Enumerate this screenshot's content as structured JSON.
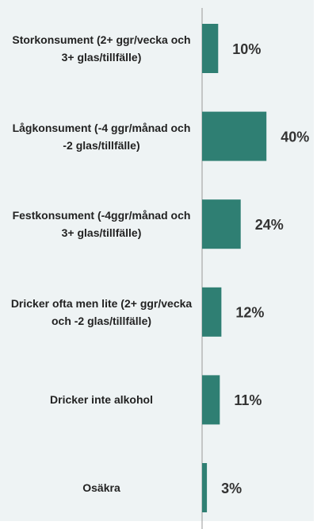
{
  "chart_data": {
    "type": "bar",
    "orientation": "horizontal",
    "categories": [
      "Storkonsument (2+ ggr/vecka och 3+ glas/tillfälle)",
      "Lågkonsument (-4 ggr/månad och -2 glas/tillfälle)",
      "Festkonsument (-4ggr/månad och 3+ glas/tillfälle)",
      "Dricker ofta men lite (2+ ggr/vecka och -2 glas/tillfälle)",
      "Dricker inte alkohol",
      "Osäkra"
    ],
    "values": [
      10,
      40,
      24,
      12,
      11,
      3
    ],
    "value_labels": [
      "10%",
      "40%",
      "24%",
      "12%",
      "11%",
      "3%"
    ],
    "color": "#2f7f73"
  }
}
